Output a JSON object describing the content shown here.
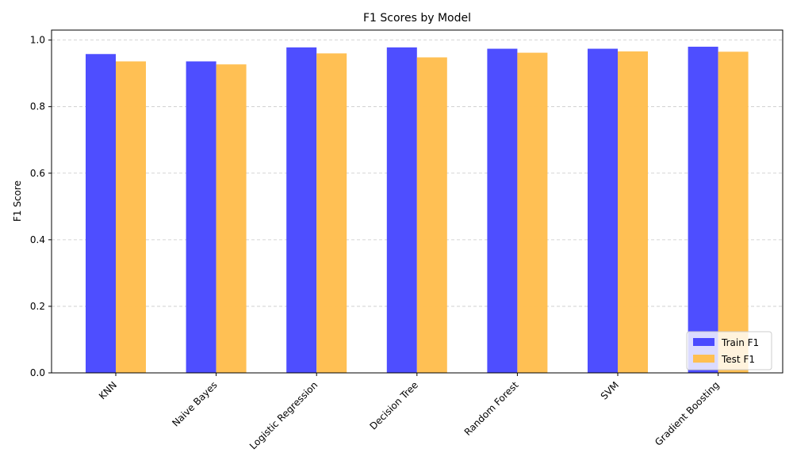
{
  "chart_data": {
    "type": "bar",
    "title": "F1 Scores by Model",
    "xlabel": "",
    "ylabel": "F1 Score",
    "categories": [
      "KNN",
      "Naive Bayes",
      "Logistic Regression",
      "Decision Tree",
      "Random Forest",
      "SVM",
      "Gradient Boosting"
    ],
    "series": [
      {
        "name": "Train F1",
        "color": "#4a4aff",
        "values": [
          0.958,
          0.936,
          0.978,
          0.978,
          0.974,
          0.974,
          0.98
        ]
      },
      {
        "name": "Test F1",
        "color": "#ffbf51",
        "values": [
          0.936,
          0.927,
          0.96,
          0.948,
          0.962,
          0.966,
          0.965
        ]
      }
    ],
    "ylim": [
      0,
      1.03
    ],
    "yticks": [
      0.0,
      0.2,
      0.4,
      0.6,
      0.8,
      1.0
    ],
    "ytick_labels": [
      "0.0",
      "0.2",
      "0.4",
      "0.6",
      "0.8",
      "1.0"
    ],
    "grid": "y-dashed",
    "legend_position": "bottom-right"
  }
}
